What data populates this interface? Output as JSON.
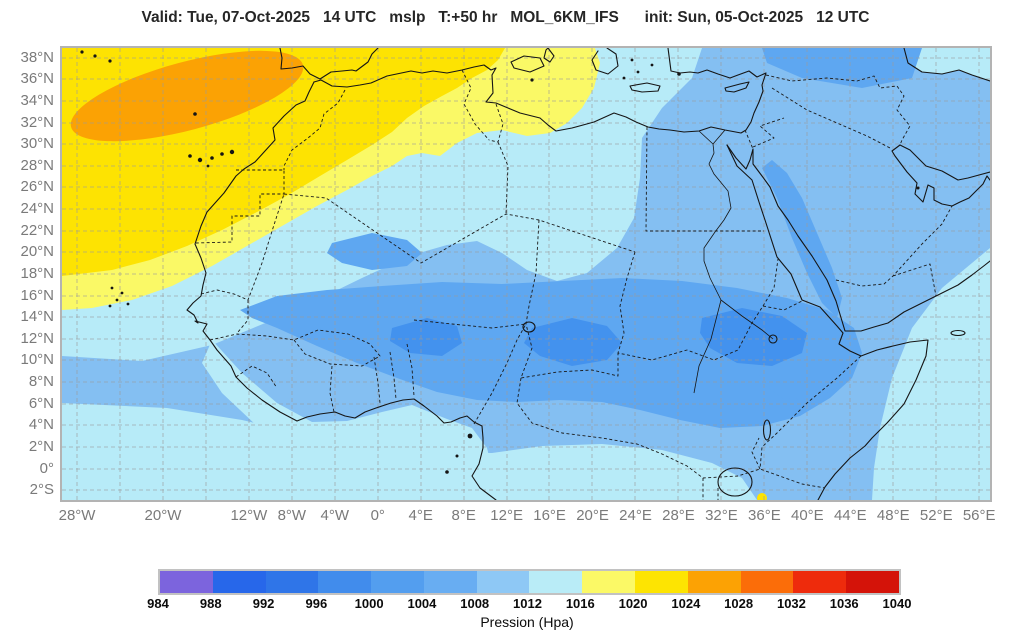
{
  "title": "Valid: Tue, 07-Oct-2025   14 UTC   mslp   T:+50 hr   MOL_6KM_IFS      init: Sun, 05-Oct-2025   12 UTC",
  "axes": {
    "lat_labels": [
      {
        "text": "38°N",
        "deg": 38
      },
      {
        "text": "36°N",
        "deg": 36
      },
      {
        "text": "34°N",
        "deg": 34
      },
      {
        "text": "32°N",
        "deg": 32
      },
      {
        "text": "30°N",
        "deg": 30
      },
      {
        "text": "28°N",
        "deg": 28
      },
      {
        "text": "26°N",
        "deg": 26
      },
      {
        "text": "24°N",
        "deg": 24
      },
      {
        "text": "22°N",
        "deg": 22
      },
      {
        "text": "20°N",
        "deg": 20
      },
      {
        "text": "18°N",
        "deg": 18
      },
      {
        "text": "16°N",
        "deg": 16
      },
      {
        "text": "14°N",
        "deg": 14
      },
      {
        "text": "12°N",
        "deg": 12
      },
      {
        "text": "10°N",
        "deg": 10
      },
      {
        "text": "8°N",
        "deg": 8
      },
      {
        "text": "6°N",
        "deg": 6
      },
      {
        "text": "4°N",
        "deg": 4
      },
      {
        "text": "2°N",
        "deg": 2
      },
      {
        "text": "0°",
        "deg": 0
      },
      {
        "text": "2°S",
        "deg": -2
      }
    ],
    "lon_labels": [
      {
        "text": "28°W",
        "deg": -28
      },
      {
        "text": "20°W",
        "deg": -20
      },
      {
        "text": "12°W",
        "deg": -12
      },
      {
        "text": "8°W",
        "deg": -8
      },
      {
        "text": "4°W",
        "deg": -4
      },
      {
        "text": "0°",
        "deg": 0
      },
      {
        "text": "4°E",
        "deg": 4
      },
      {
        "text": "8°E",
        "deg": 8
      },
      {
        "text": "12°E",
        "deg": 12
      },
      {
        "text": "16°E",
        "deg": 16
      },
      {
        "text": "20°E",
        "deg": 20
      },
      {
        "text": "24°E",
        "deg": 24
      },
      {
        "text": "28°E",
        "deg": 28
      },
      {
        "text": "32°E",
        "deg": 32
      },
      {
        "text": "36°E",
        "deg": 36
      },
      {
        "text": "40°E",
        "deg": 40
      },
      {
        "text": "44°E",
        "deg": 44
      },
      {
        "text": "48°E",
        "deg": 48
      },
      {
        "text": "52°E",
        "deg": 52
      },
      {
        "text": "56°E",
        "deg": 56
      }
    ]
  },
  "colorbar": {
    "title": "Pression (Hpa)",
    "ticks": [
      984,
      988,
      992,
      996,
      1000,
      1004,
      1008,
      1012,
      1016,
      1020,
      1024,
      1028,
      1032,
      1036,
      1040
    ],
    "colors": [
      "#7c64dd",
      "#2767ea",
      "#2f75e8",
      "#418cec",
      "#539eef",
      "#68adf2",
      "#8ec8f5",
      "#b9ecf7",
      "#fbf966",
      "#fde402",
      "#fca204",
      "#fb6d09",
      "#ee2b0c",
      "#d41309"
    ]
  },
  "chart_data": {
    "type": "heatmap",
    "subtype": "filled_contour_weather_map",
    "title": "Mean sea level pressure (mslp) forecast over North Africa / Middle East",
    "model": "MOL_6KM_IFS",
    "valid": "Tue, 07-Oct-2025 14 UTC",
    "init": "Sun, 05-Oct-2025 12 UTC",
    "lead_hours": 50,
    "variable": "mslp",
    "units": "hPa",
    "lon_range": [
      -29.4,
      57.0
    ],
    "lat_range": [
      -3.0,
      39.0
    ],
    "lat_tick_step_deg": 2,
    "lon_tick_step_deg": 4,
    "grid": "dashed gray graticule",
    "contour_levels_hpa": [
      984,
      988,
      992,
      996,
      1000,
      1004,
      1008,
      1012,
      1016,
      1020,
      1024,
      1028,
      1032,
      1036,
      1040
    ],
    "palette": [
      "#7c64dd",
      "#2767ea",
      "#2f75e8",
      "#418cec",
      "#539eef",
      "#68adf2",
      "#8ec8f5",
      "#b9ecf7",
      "#fbf966",
      "#fde402",
      "#fca204",
      "#fb6d09",
      "#ee2b0c",
      "#d41309"
    ],
    "legend_position": "bottom",
    "features": [
      {
        "name": "subtropical high core (orange)",
        "approx_lon": -23,
        "approx_lat": 33,
        "value_hpa": "1024-1028"
      },
      {
        "name": "gold band around high, NE Atlantic / Iberia / Alboran Sea",
        "value_hpa": "1020-1024"
      },
      {
        "name": "pale yellow band, Morocco offshore and NE Algeria / Tunisia",
        "value_hpa": "1016-1020"
      },
      {
        "name": "pale cyan transition band, NW Africa interior, Libya, tropical Atlantic, SE Indian Ocean, Caspian corner",
        "value_hpa": "1012-1016"
      },
      {
        "name": "dominant light blue over most of Sahara, Mediterranean, Middle East",
        "value_hpa": "1008-1012"
      },
      {
        "name": "Saharan heat-low belt across Sahel, Chad, Sudan, west Arabia",
        "value_hpa": "1004-1008"
      },
      {
        "name": "lowest cores over Mali, Niger/Chad and central Sudan",
        "value_hpa": "1000-1004"
      },
      {
        "name": "tiny high spot near Lake Victoria at bottom edge",
        "value_hpa": "1020-1024"
      }
    ]
  }
}
